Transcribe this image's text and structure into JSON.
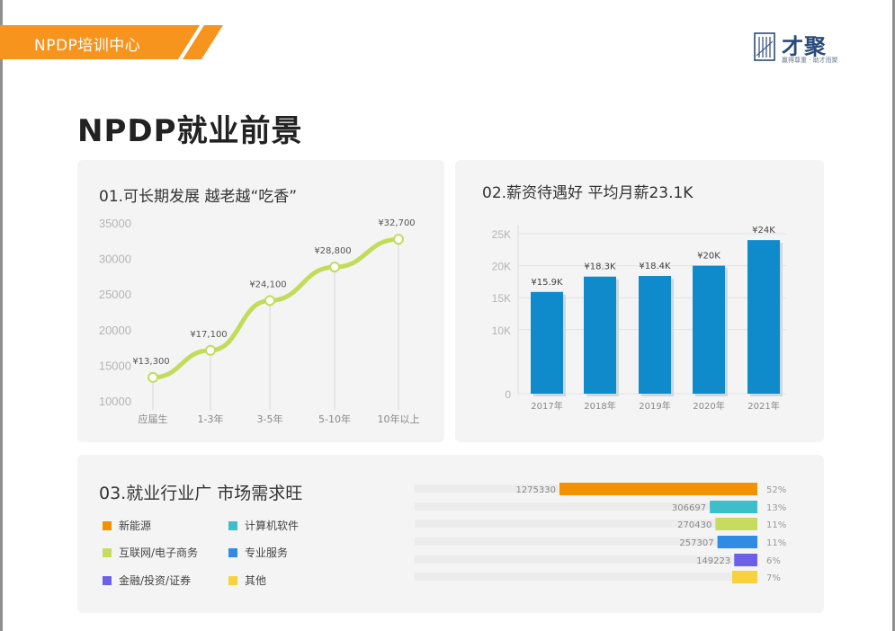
{
  "header": {
    "banner_text": "NPDP培训中心",
    "logo_name": "才聚",
    "logo_tagline": "赢得尊重 · 助才而聚"
  },
  "page_title": "NPDP就业前景",
  "colors": {
    "banner": "#f7941d",
    "line": "#c2dc5a",
    "bar": "#0f8bcb"
  },
  "card1": {
    "title": "01.可长期发展  越老越“吃香”"
  },
  "card2": {
    "title": "02.薪资待遇好  平均月薪23.1K"
  },
  "card3": {
    "title": "03.就业行业广  市场需求旺"
  },
  "chart_data": [
    {
      "type": "line",
      "title": "01.可长期发展  越老越“吃香”",
      "categories": [
        "应届生",
        "1-3年",
        "3-5年",
        "5-10年",
        "10年以上"
      ],
      "values": [
        13300,
        17100,
        24100,
        28800,
        32700
      ],
      "data_labels": [
        "¥13,300",
        "¥17,100",
        "¥24,100",
        "¥28,800",
        "¥32,700"
      ],
      "yticks": [
        "10000",
        "15000",
        "20000",
        "25000",
        "30000",
        "35000"
      ],
      "ylim": [
        10000,
        35000
      ]
    },
    {
      "type": "bar",
      "title": "02.薪资待遇好  平均月薪23.1K",
      "categories": [
        "2017年",
        "2018年",
        "2019年",
        "2020年",
        "2021年"
      ],
      "values": [
        15.9,
        18.3,
        18.4,
        20,
        24
      ],
      "data_labels": [
        "¥15.9K",
        "¥18.3K",
        "¥18.4K",
        "¥20K",
        "¥24K"
      ],
      "yticks": [
        "0",
        "10K",
        "15K",
        "20K",
        "25K"
      ],
      "ylim": [
        0,
        25
      ]
    },
    {
      "type": "bar",
      "orientation": "horizontal",
      "title": "03.就业行业广  市场需求旺",
      "categories": [
        "新能源",
        "计算机软件",
        "互联网/电子商务",
        "专业服务",
        "金融/投资/证券",
        "其他"
      ],
      "values": [
        1275330,
        306697,
        270430,
        257307,
        149223,
        null
      ],
      "value_labels": [
        "1275330",
        "306697",
        "270430",
        "257307",
        "149223",
        ""
      ],
      "percent_labels": [
        "52%",
        "13%",
        "11%",
        "11%",
        "6%",
        "7%"
      ],
      "colors": [
        "#f39200",
        "#3cbfc8",
        "#c7dc5f",
        "#2f8be6",
        "#6c5fe8",
        "#f7d23c"
      ],
      "legend": [
        "新能源",
        "计算机软件",
        "互联网/电子商务",
        "专业服务",
        "金融/投资/证券",
        "其他"
      ]
    }
  ]
}
